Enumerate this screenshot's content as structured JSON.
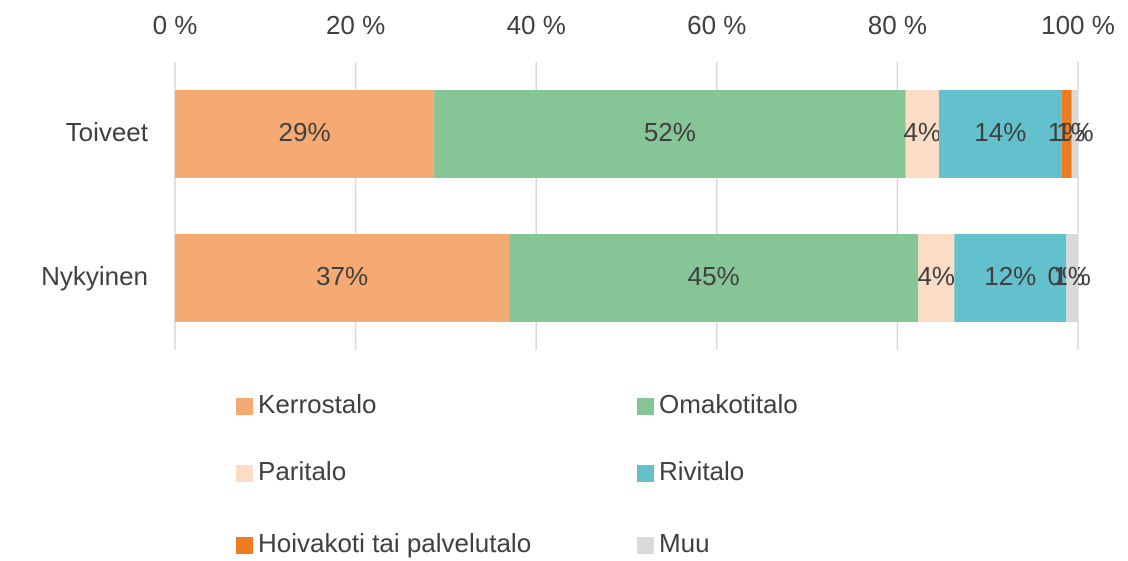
{
  "chart_data": {
    "type": "stacked_bar_horizontal",
    "categories": [
      "Toiveet",
      "Nykyinen"
    ],
    "series": [
      {
        "name": "Kerrostalo",
        "color": "#f4aa72",
        "values": [
          28.7,
          37.0
        ],
        "value_labels": [
          "29%",
          "37%"
        ]
      },
      {
        "name": "Omakotitalo",
        "color": "#86c596",
        "values": [
          52.2,
          45.3
        ],
        "value_labels": [
          "52%",
          "45%"
        ]
      },
      {
        "name": "Paritalo",
        "color": "#fbdcc4",
        "values": [
          3.7,
          4.0
        ],
        "value_labels": [
          "4%",
          "4%"
        ]
      },
      {
        "name": "Rivitalo",
        "color": "#62c1cc",
        "values": [
          13.6,
          12.4
        ],
        "value_labels": [
          "14%",
          "12%"
        ]
      },
      {
        "name": "Hoivakoti tai palvelutalo",
        "color": "#f07c22",
        "values": [
          1.1,
          0
        ],
        "value_labels": [
          "1%",
          "0%"
        ]
      },
      {
        "name": "Muu",
        "color": "#d9d9d9",
        "values": [
          0.7,
          1.3
        ],
        "value_labels": [
          "1%",
          "1%"
        ]
      }
    ],
    "xlim": [
      0,
      100
    ],
    "xticks": [
      {
        "value": 0,
        "label": "0 %"
      },
      {
        "value": 20,
        "label": "20 %"
      },
      {
        "value": 40,
        "label": "40 %"
      },
      {
        "value": 60,
        "label": "60 %"
      },
      {
        "value": 80,
        "label": "80 %"
      },
      {
        "value": 100,
        "label": "100 %"
      }
    ],
    "grid": true
  }
}
